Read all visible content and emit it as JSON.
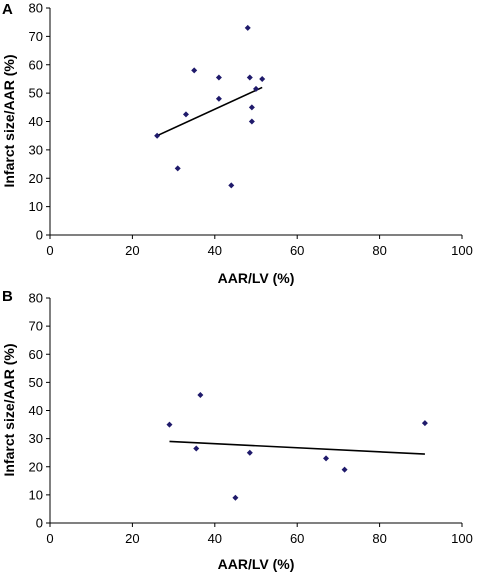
{
  "chart_data": [
    {
      "type": "scatter",
      "panel_label": "A",
      "xlabel": "AAR/LV (%)",
      "ylabel": "Infarct size/AAR (%)",
      "xlim": [
        0,
        100
      ],
      "ylim": [
        0,
        80
      ],
      "xticks": [
        0,
        20,
        40,
        60,
        80,
        100
      ],
      "yticks": [
        0,
        10,
        20,
        30,
        40,
        50,
        60,
        70,
        80
      ],
      "marker_color": "#1f1a6b",
      "points": [
        {
          "x": 26,
          "y": 35
        },
        {
          "x": 31,
          "y": 23.5
        },
        {
          "x": 33,
          "y": 42.5
        },
        {
          "x": 35,
          "y": 58
        },
        {
          "x": 41,
          "y": 55.5
        },
        {
          "x": 41,
          "y": 48
        },
        {
          "x": 44,
          "y": 17.5
        },
        {
          "x": 48,
          "y": 73
        },
        {
          "x": 48.5,
          "y": 55.5
        },
        {
          "x": 49,
          "y": 45
        },
        {
          "x": 49,
          "y": 40
        },
        {
          "x": 50,
          "y": 51.5
        },
        {
          "x": 51.5,
          "y": 55
        }
      ],
      "trendline": {
        "x": [
          26,
          51.5
        ],
        "y": [
          35,
          52
        ]
      }
    },
    {
      "type": "scatter",
      "panel_label": "B",
      "xlabel": "AAR/LV (%)",
      "ylabel": "Infarct size/AAR (%)",
      "xlim": [
        0,
        100
      ],
      "ylim": [
        0,
        80
      ],
      "xticks": [
        0,
        20,
        40,
        60,
        80,
        100
      ],
      "yticks": [
        0,
        10,
        20,
        30,
        40,
        50,
        60,
        70,
        80
      ],
      "marker_color": "#1f1a6b",
      "points": [
        {
          "x": 29,
          "y": 35
        },
        {
          "x": 35.5,
          "y": 26.5
        },
        {
          "x": 36.5,
          "y": 45.5
        },
        {
          "x": 45,
          "y": 9
        },
        {
          "x": 48.5,
          "y": 25
        },
        {
          "x": 67,
          "y": 23
        },
        {
          "x": 71.5,
          "y": 19
        },
        {
          "x": 91,
          "y": 35.5
        }
      ],
      "trendline": {
        "x": [
          29,
          91
        ],
        "y": [
          29,
          24.5
        ]
      }
    }
  ]
}
